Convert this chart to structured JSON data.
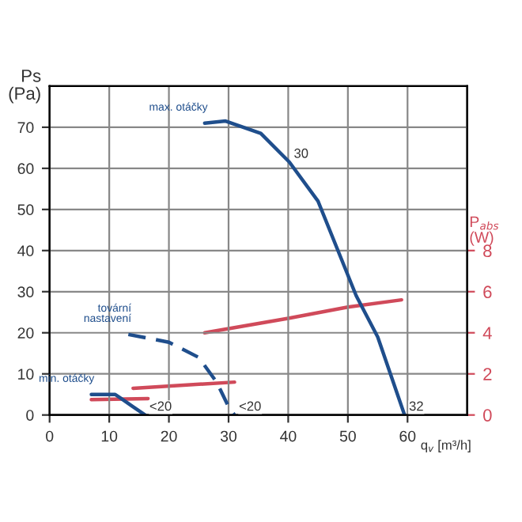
{
  "chart_data": {
    "type": "line",
    "xlabel": "q$_{v}$ [m³/h]",
    "ylabel": "Ps\n(Pa)",
    "y2label": "P$_{abs}$\n(W)",
    "xlim": [
      0,
      70
    ],
    "xticks": [
      0,
      10,
      20,
      30,
      40,
      50,
      60
    ],
    "ylim": [
      0,
      80
    ],
    "yticks": [
      0,
      10,
      20,
      30,
      40,
      50,
      60,
      70
    ],
    "y2lim": [
      0,
      16
    ],
    "y2ticks": [
      0,
      2,
      4,
      6,
      8
    ],
    "grid": true,
    "marker": "none",
    "series": [
      {
        "name": "max. otáčky",
        "color": "#1f4e8c",
        "x": [
          26,
          29.5,
          35.4,
          40.2,
          45,
          51.4,
          55,
          59.5
        ],
        "values": [
          71,
          71.5,
          68.5,
          61.5,
          52,
          29,
          19,
          0
        ],
        "line_style": "solid"
      },
      {
        "name": "tovární\nnastavení",
        "color": "#1f4e8c",
        "x": [
          13.2,
          20,
          25,
          28,
          30,
          31
        ],
        "values": [
          19.6,
          17.7,
          14,
          8,
          2,
          0
        ],
        "line_style": "dashed"
      },
      {
        "name": "min. otáčky",
        "color": "#1f4e8c",
        "x": [
          7,
          11,
          12,
          14,
          16
        ],
        "values": [
          5,
          5,
          4,
          2,
          0
        ],
        "line_style": "solid"
      },
      {
        "color": "#d04a5a",
        "axis": "y2",
        "x": [
          26,
          40,
          50,
          59
        ],
        "values": [
          4.0,
          4.7,
          5.25,
          5.6
        ],
        "line_style": "solid"
      },
      {
        "color": "#d04a5a",
        "axis": "y2",
        "x": [
          14,
          31
        ],
        "values": [
          1.3,
          1.6
        ],
        "line_style": "solid"
      },
      {
        "color": "#d04a5a",
        "axis": "y2",
        "x": [
          7,
          16.5
        ],
        "values": [
          0.75,
          0.8
        ],
        "line_style": "solid"
      }
    ],
    "annotations": [
      {
        "text": "30",
        "x": 40.2,
        "y": 61.5
      },
      {
        "text": "32",
        "x": 59.5,
        "y": 0
      },
      {
        "text": "<20",
        "x": 31,
        "y": 0
      },
      {
        "text": "<20",
        "x": 16,
        "y": 0
      }
    ]
  }
}
